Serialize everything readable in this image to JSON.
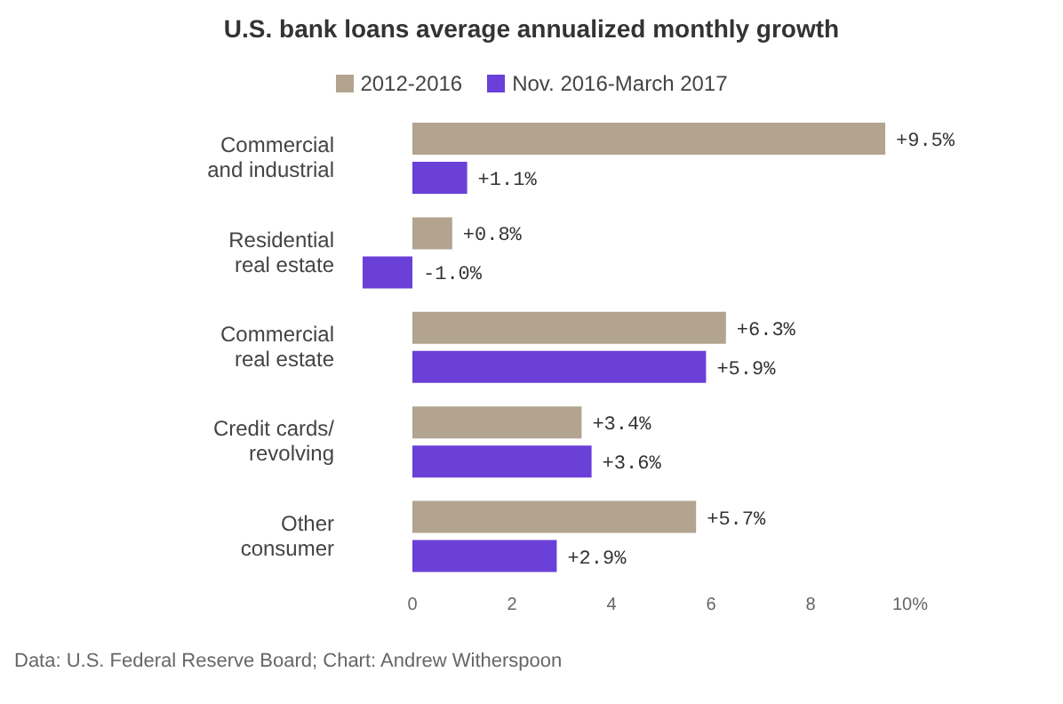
{
  "chart_data": {
    "type": "bar",
    "orientation": "horizontal",
    "title": "U.S. bank loans average annualized monthly growth",
    "categories": [
      "Commercial\nand industrial",
      "Residential\nreal estate",
      "Commercial\nreal estate",
      "Credit cards/\nrevolving",
      "Other\nconsumer"
    ],
    "series": [
      {
        "name": "2012-2016",
        "color": "#b2a48f",
        "values": [
          9.5,
          0.8,
          6.3,
          3.4,
          5.7
        ],
        "value_labels": [
          "+9.5%",
          "+0.8%",
          "+6.3%",
          "+3.4%",
          "+5.7%"
        ]
      },
      {
        "name": "Nov. 2016-March 2017",
        "color": "#6a40d8",
        "values": [
          1.1,
          -1.0,
          5.9,
          3.6,
          2.9
        ],
        "value_labels": [
          "+1.1%",
          "-1.0%",
          "+5.9%",
          "+3.6%",
          "+2.9%"
        ]
      }
    ],
    "xlim": [
      -1,
      10
    ],
    "xticks": [
      0,
      2,
      4,
      6,
      8,
      {
        "value": 10,
        "label": "10%"
      }
    ],
    "legend": "top",
    "annotations": [
      "Data: U.S. Federal Reserve Board; Chart: Andrew Witherspoon"
    ]
  }
}
